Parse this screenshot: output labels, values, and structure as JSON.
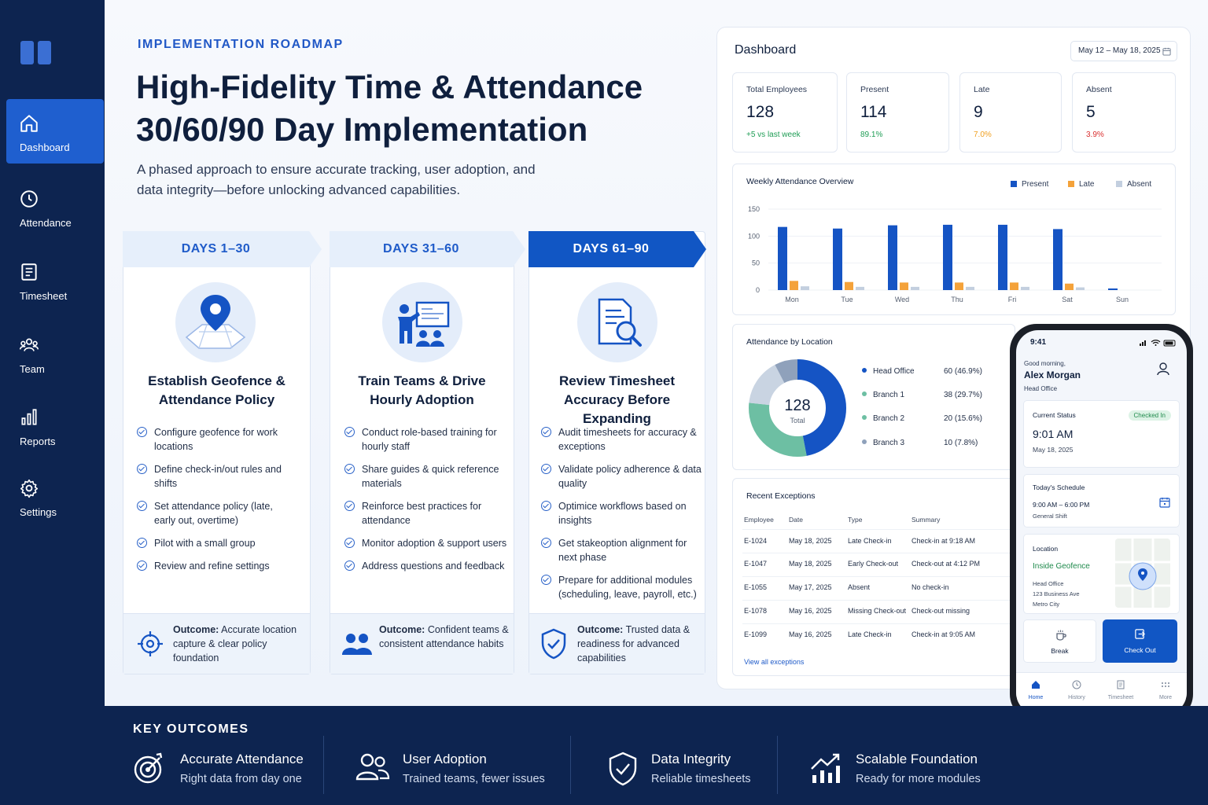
{
  "nav": {
    "items": [
      {
        "label": "Dashboard",
        "icon": "home-icon"
      },
      {
        "label": "Attendance",
        "icon": "clock-icon"
      },
      {
        "label": "Timesheet",
        "icon": "document-icon"
      },
      {
        "label": "Team",
        "icon": "team-icon"
      },
      {
        "label": "Reports",
        "icon": "bar-chart-icon"
      },
      {
        "label": "Settings",
        "icon": "gear-icon"
      }
    ],
    "active": "Dashboard"
  },
  "hero": {
    "eyebrow": "IMPLEMENTATION ROADMAP",
    "title_line1": "High-Fidelity Time & Attendance",
    "title_line2": "30/60/90 Day Implementation",
    "subtitle": "A phased approach to ensure accurate tracking, user adoption, and data integrity—before unlocking advanced capabilities."
  },
  "phases": [
    {
      "header": "DAYS 1–30",
      "icon": "map-pin-icon",
      "title": "Establish Geofence & Attendance Policy",
      "items": [
        "Configure geofence for work locations",
        "Define check-in/out rules and shifts",
        "Set attendance policy (late, early out, overtime)",
        "Pilot with a small group",
        "Review and refine settings"
      ],
      "outcome_label": "Outcome:",
      "outcome_text": "Accurate location capture & clear policy foundation",
      "outcome_icon": "crosshair-icon"
    },
    {
      "header": "DAYS 31–60",
      "icon": "training-presentation-icon",
      "title": "Train Teams & Drive Hourly Adoption",
      "items": [
        "Conduct role-based training for hourly staff",
        "Share guides & quick reference materials",
        "Reinforce best practices for attendance",
        "Monitor adoption & support users",
        "Address questions and feedback"
      ],
      "outcome_label": "Outcome:",
      "outcome_text": "Confident teams & consistent attendance habits",
      "outcome_icon": "people-icon"
    },
    {
      "header": "DAYS 61–90",
      "icon": "document-search-icon",
      "title": "Review Timesheet Accuracy Before Expanding",
      "items": [
        "Audit timesheets for accuracy & exceptions",
        "Validate policy adherence & data quality",
        "Optimice workflows based on insights",
        "Get stakeoption alignment for next phase",
        "Prepare for additional modules (scheduling, leave, payroll, etc.)"
      ],
      "outcome_label": "Outcome:",
      "outcome_text": "Trusted data & readiness for advanced capabilities",
      "outcome_icon": "shield-check-icon"
    }
  ],
  "dashboard": {
    "title": "Dashboard",
    "date_range": "May 12 – May 18, 2025",
    "kpis": [
      {
        "label": "Total Employees",
        "value": "128",
        "delta": "+5 vs last week",
        "color": "#1f9d55"
      },
      {
        "label": "Present",
        "value": "114",
        "delta": "89.1%",
        "color": "#1f9d55"
      },
      {
        "label": "Late",
        "value": "9",
        "delta": "7.0%",
        "color": "#f0a020"
      },
      {
        "label": "Absent",
        "value": "5",
        "delta": "3.9%",
        "color": "#d93030"
      }
    ],
    "locations_title": "Attendance by Location",
    "donut_value": "128",
    "donut_label": "Total",
    "locations": [
      {
        "name": "Head Office",
        "value": "60 (46.9%)",
        "share": 46.9,
        "color": "#1554c4"
      },
      {
        "name": "Branch 1",
        "value": "38 (29.7%)",
        "share": 29.7,
        "color": "#6dbfa3"
      },
      {
        "name": "Branch 2",
        "value": "20 (15.6%)",
        "share": 15.6,
        "color": "#c9d4e2"
      },
      {
        "name": "Branch 3",
        "value": "10 (7.8%)",
        "share": 7.8,
        "color": "#8fa1bb"
      }
    ],
    "exceptions_title": "Recent Exceptions",
    "exceptions_columns": [
      "Employee",
      "Date",
      "Type",
      "Summary"
    ],
    "exceptions": [
      [
        "E-1024",
        "May 18, 2025",
        "Late Check-in",
        "Check-in at 9:18 AM"
      ],
      [
        "E-1047",
        "May 18, 2025",
        "Early Check-out",
        "Check-out at 4:12 PM"
      ],
      [
        "E-1055",
        "May 17, 2025",
        "Absent",
        "No check-in"
      ],
      [
        "E-1078",
        "May 16, 2025",
        "Missing Check-out",
        "Check-out missing"
      ],
      [
        "E-1099",
        "May 16, 2025",
        "Late Check-in",
        "Check-in at 9:05 AM"
      ]
    ],
    "view_all": "View all exceptions"
  },
  "chart_data": {
    "type": "bar",
    "title": "Weekly Attendance Overview",
    "categories": [
      "Mon",
      "Tue",
      "Wed",
      "Thu",
      "Fri",
      "Sat",
      "Sun"
    ],
    "series": [
      {
        "name": "Present",
        "color": "#1554c4",
        "values": [
          117,
          114,
          120,
          121,
          121,
          113,
          3
        ]
      },
      {
        "name": "Late",
        "color": "#f4a23a",
        "values": [
          17,
          15,
          14,
          14,
          14,
          12,
          0
        ]
      },
      {
        "name": "Absent",
        "color": "#c3cfdf",
        "values": [
          7,
          6,
          6,
          6,
          6,
          5,
          0
        ]
      }
    ],
    "ylim": [
      0,
      150
    ],
    "yticks": [
      "150",
      "100",
      "50",
      "0"
    ],
    "grid": true,
    "legend": "top-right"
  },
  "phone": {
    "time": "9:41",
    "greeting": "Good morning,",
    "name": "Alex Morgan",
    "office": "Head Office",
    "status_label": "Current Status",
    "status_badge": "Checked In",
    "status_time": "9:01 AM",
    "status_date": "May 18, 2025",
    "schedule_label": "Today's Schedule",
    "schedule_time": "9:00 AM – 6:00 PM",
    "schedule_shift": "General Shift",
    "location_label": "Location",
    "location_status": "Inside Geofence",
    "address_line1": "Head Office",
    "address_line2": "123 Business Ave",
    "address_line3": "Metro City",
    "break_label": "Break",
    "checkout_label": "Check Out",
    "tabs": [
      "Home",
      "History",
      "Timesheet",
      "More"
    ]
  },
  "key_outcomes": {
    "title": "KEY OUTCOMES",
    "items": [
      {
        "title": "Accurate Attendance",
        "sub": "Right data from day one",
        "icon": "target-icon"
      },
      {
        "title": "User Adoption",
        "sub": "Trained teams, fewer issues",
        "icon": "users-icon"
      },
      {
        "title": "Data Integrity",
        "sub": "Reliable timesheets",
        "icon": "shield-check-icon"
      },
      {
        "title": "Scalable Foundation",
        "sub": "Ready for more modules",
        "icon": "growth-chart-icon"
      }
    ]
  }
}
